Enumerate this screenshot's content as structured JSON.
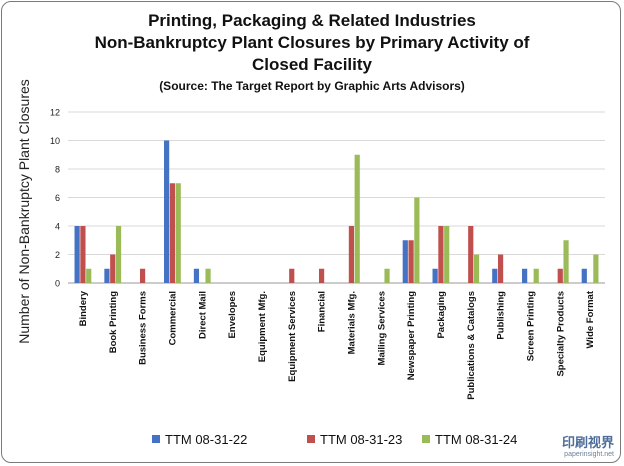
{
  "titles": {
    "line1": "Printing, Packaging & Related Industries",
    "line2": "Non-Bankruptcy Plant Closures by Primary Activity of Closed Facility",
    "line3": "(Source: The Target Report by Graphic Arts Advisors)"
  },
  "watermark": {
    "logo": "印刷视界",
    "url": "paperinsight.net"
  },
  "chart_data": {
    "type": "bar",
    "title": "Printing, Packaging & Related Industries Non-Bankruptcy Plant Closures by Primary Activity of Closed Facility",
    "subtitle": "(Source: The Target Report by Graphic Arts Advisors)",
    "xlabel": "",
    "ylabel": "Number of Non-Bankruptcy Plant Closures",
    "ylim": [
      0,
      12
    ],
    "yticks": [
      0,
      2,
      4,
      6,
      8,
      10,
      12
    ],
    "grid": true,
    "legend_position": "bottom",
    "categories": [
      "Bindery",
      "Book Printing",
      "Business Forms",
      "Commercial",
      "Direct Mail",
      "Envelopes",
      "Equipment Mfg.",
      "Equipment Services",
      "Financial",
      "Materials Mfg.",
      "Mailing Services",
      "Newspaper Printing",
      "Packaging",
      "Publications & Catalogs",
      "Publishing",
      "Screen Printing",
      "Specialty Products",
      "Wide Format"
    ],
    "series": [
      {
        "name": "TTM 08-31-22",
        "color": "#4472c4",
        "values": [
          4,
          1,
          0,
          10,
          1,
          0,
          0,
          0,
          0,
          0,
          0,
          3,
          1,
          0,
          1,
          1,
          0,
          1
        ]
      },
      {
        "name": "TTM 08-31-23",
        "color": "#c0504d",
        "values": [
          4,
          2,
          1,
          7,
          0,
          0,
          0,
          1,
          1,
          4,
          0,
          3,
          4,
          4,
          2,
          0,
          1,
          0
        ]
      },
      {
        "name": "TTM 08-31-24",
        "color": "#9bbb59",
        "values": [
          1,
          4,
          0,
          7,
          1,
          0,
          0,
          0,
          0,
          9,
          1,
          6,
          4,
          2,
          0,
          1,
          3,
          2
        ]
      }
    ]
  }
}
